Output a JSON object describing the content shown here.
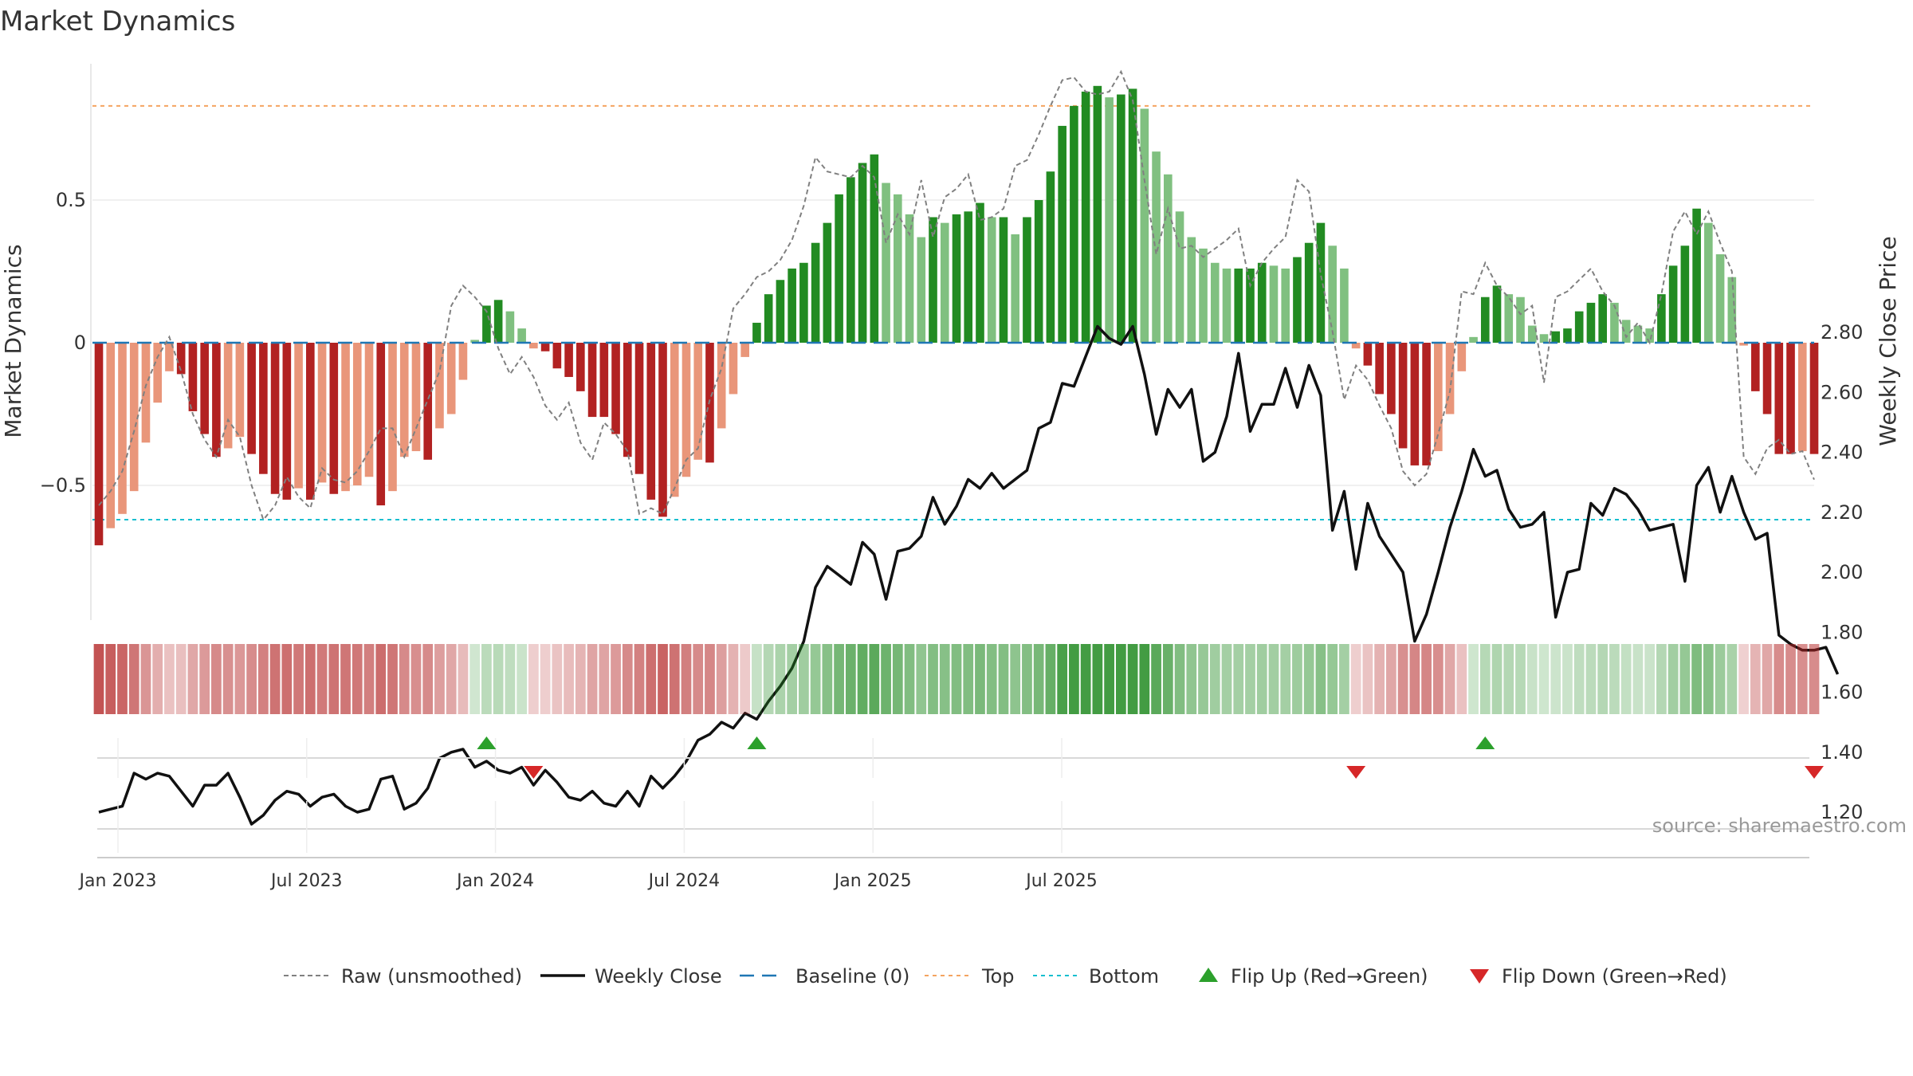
{
  "title": "Market Dynamics",
  "source": "source: sharemaestro.com",
  "colors": {
    "green_strong": "#228b22",
    "green_light": "#80c080",
    "red_strong": "#b22222",
    "red_light": "#e9967a",
    "close_line": "#111111",
    "raw_line": "#808080",
    "baseline": "#1f77b4",
    "top": "#f4a460",
    "bottom": "#17becf",
    "flip_up": "#2ca02c",
    "flip_down": "#d62728"
  },
  "chart_data": {
    "type": "bar",
    "title": "Market Dynamics",
    "x_type": "weekly",
    "x_ticks": [
      "Jan 2023",
      "Jul 2023",
      "Jan 2024",
      "Jul 2024",
      "Jan 2025",
      "Jul 2025"
    ],
    "left_axis": {
      "label": "Market Dynamics",
      "ticks": [
        "0.5",
        "0",
        "−0.5"
      ],
      "tick_values": [
        0.5,
        0,
        -0.5
      ],
      "range": [
        -0.97,
        0.97
      ]
    },
    "right_axis": {
      "label": "Weekly Close Price",
      "ticks": [
        "1.20",
        "1.40",
        "1.60",
        "1.80",
        "2.00",
        "2.20",
        "2.40",
        "2.60",
        "2.80"
      ],
      "range": [
        1.0,
        2.86
      ]
    },
    "lines": {
      "top": 0.83,
      "bottom": -0.62,
      "baseline": 0
    },
    "dynamics": [
      -0.71,
      -0.65,
      -0.6,
      -0.52,
      -0.35,
      -0.21,
      -0.1,
      -0.11,
      -0.24,
      -0.32,
      -0.4,
      -0.37,
      -0.33,
      -0.39,
      -0.46,
      -0.53,
      -0.55,
      -0.51,
      -0.55,
      -0.49,
      -0.53,
      -0.52,
      -0.5,
      -0.47,
      -0.57,
      -0.52,
      -0.4,
      -0.38,
      -0.41,
      -0.3,
      -0.25,
      -0.13,
      0.01,
      0.13,
      0.15,
      0.11,
      0.05,
      -0.02,
      -0.03,
      -0.09,
      -0.12,
      -0.17,
      -0.26,
      -0.26,
      -0.32,
      -0.4,
      -0.46,
      -0.55,
      -0.61,
      -0.54,
      -0.47,
      -0.41,
      -0.42,
      -0.3,
      -0.18,
      -0.05,
      0.07,
      0.17,
      0.22,
      0.26,
      0.28,
      0.35,
      0.42,
      0.52,
      0.58,
      0.63,
      0.66,
      0.56,
      0.52,
      0.45,
      0.37,
      0.44,
      0.42,
      0.45,
      0.46,
      0.49,
      0.44,
      0.44,
      0.38,
      0.44,
      0.5,
      0.6,
      0.76,
      0.83,
      0.88,
      0.9,
      0.86,
      0.87,
      0.89,
      0.82,
      0.67,
      0.59,
      0.46,
      0.37,
      0.33,
      0.28,
      0.26,
      0.26,
      0.26,
      0.28,
      0.27,
      0.26,
      0.3,
      0.35,
      0.42,
      0.34,
      0.26,
      -0.02,
      -0.08,
      -0.18,
      -0.25,
      -0.37,
      -0.43,
      -0.43,
      -0.38,
      -0.25,
      -0.1,
      0.02,
      0.16,
      0.2,
      0.17,
      0.16,
      0.06,
      0.03,
      0.04,
      0.05,
      0.11,
      0.14,
      0.17,
      0.14,
      0.08,
      0.06,
      0.05,
      0.17,
      0.27,
      0.34,
      0.47,
      0.42,
      0.31,
      0.23,
      -0.01,
      -0.17,
      -0.25,
      -0.39,
      -0.39,
      -0.38,
      -0.39
    ],
    "close": [
      1.2,
      1.21,
      1.22,
      1.33,
      1.31,
      1.33,
      1.32,
      1.27,
      1.22,
      1.29,
      1.29,
      1.33,
      1.25,
      1.16,
      1.19,
      1.24,
      1.27,
      1.26,
      1.22,
      1.25,
      1.26,
      1.22,
      1.2,
      1.21,
      1.31,
      1.32,
      1.21,
      1.23,
      1.28,
      1.38,
      1.4,
      1.41,
      1.35,
      1.37,
      1.34,
      1.33,
      1.35,
      1.29,
      1.34,
      1.3,
      1.25,
      1.24,
      1.27,
      1.23,
      1.22,
      1.27,
      1.22,
      1.32,
      1.28,
      1.32,
      1.37,
      1.44,
      1.46,
      1.5,
      1.48,
      1.53,
      1.51,
      1.57,
      1.62,
      1.68,
      1.77,
      1.95,
      2.02,
      1.99,
      1.96,
      2.1,
      2.06,
      1.91,
      2.07,
      2.08,
      2.12,
      2.25,
      2.16,
      2.22,
      2.31,
      2.28,
      2.33,
      2.28,
      2.31,
      2.34,
      2.48,
      2.5,
      2.63,
      2.62,
      2.72,
      2.82,
      2.78,
      2.76,
      2.82,
      2.66,
      2.46,
      2.61,
      2.55,
      2.61,
      2.37,
      2.4,
      2.52,
      2.73,
      2.47,
      2.56,
      2.56,
      2.68,
      2.55,
      2.69,
      2.59,
      2.14,
      2.27,
      2.01,
      2.23,
      2.12,
      2.06,
      2.0,
      1.77,
      1.86,
      2.0,
      2.15,
      2.27,
      2.41,
      2.32,
      2.34,
      2.21,
      2.15,
      2.16,
      2.2,
      1.85,
      2.0,
      2.01,
      2.23,
      2.19,
      2.28,
      2.26,
      2.21,
      2.14,
      2.15,
      2.16,
      1.97,
      2.29,
      2.35,
      2.2,
      2.32,
      2.2,
      2.11,
      2.13,
      1.79,
      1.76,
      1.74,
      1.74,
      1.75,
      1.66
    ],
    "raw": [
      -0.57,
      -0.52,
      -0.45,
      -0.31,
      -0.15,
      -0.05,
      0.02,
      -0.1,
      -0.25,
      -0.34,
      -0.4,
      -0.27,
      -0.33,
      -0.5,
      -0.62,
      -0.57,
      -0.47,
      -0.54,
      -0.58,
      -0.44,
      -0.48,
      -0.49,
      -0.45,
      -0.38,
      -0.3,
      -0.3,
      -0.4,
      -0.3,
      -0.2,
      -0.1,
      0.13,
      0.2,
      0.16,
      0.11,
      -0.02,
      -0.11,
      -0.05,
      -0.12,
      -0.22,
      -0.27,
      -0.21,
      -0.35,
      -0.41,
      -0.28,
      -0.32,
      -0.38,
      -0.6,
      -0.58,
      -0.6,
      -0.51,
      -0.41,
      -0.37,
      -0.2,
      -0.09,
      0.12,
      0.17,
      0.23,
      0.25,
      0.29,
      0.36,
      0.48,
      0.65,
      0.6,
      0.59,
      0.58,
      0.62,
      0.58,
      0.35,
      0.45,
      0.38,
      0.57,
      0.37,
      0.51,
      0.54,
      0.59,
      0.43,
      0.44,
      0.47,
      0.62,
      0.64,
      0.73,
      0.83,
      0.92,
      0.93,
      0.88,
      0.87,
      0.88,
      0.95,
      0.85,
      0.57,
      0.31,
      0.47,
      0.33,
      0.34,
      0.3,
      0.33,
      0.36,
      0.4,
      0.2,
      0.28,
      0.33,
      0.37,
      0.57,
      0.53,
      0.24,
      0.04,
      -0.2,
      -0.08,
      -0.13,
      -0.22,
      -0.3,
      -0.45,
      -0.5,
      -0.46,
      -0.32,
      -0.17,
      0.18,
      0.17,
      0.28,
      0.2,
      0.16,
      0.1,
      0.13,
      -0.14,
      0.16,
      0.18,
      0.22,
      0.26,
      0.18,
      0.13,
      0.02,
      0.07,
      0.0,
      0.17,
      0.39,
      0.46,
      0.38,
      0.46,
      0.35,
      0.25,
      -0.4,
      -0.46,
      -0.37,
      -0.34,
      -0.39,
      -0.38,
      -0.48
    ],
    "flips": [
      {
        "type": "up",
        "index": 33
      },
      {
        "type": "down",
        "index": 37
      },
      {
        "type": "up",
        "index": 56
      },
      {
        "type": "down",
        "index": 107
      },
      {
        "type": "up",
        "index": 118
      },
      {
        "type": "down",
        "index": 146
      }
    ],
    "legend": [
      {
        "key": "raw",
        "label": "Raw (unsmoothed)"
      },
      {
        "key": "close",
        "label": "Weekly Close"
      },
      {
        "key": "baseline",
        "label": "Baseline (0)"
      },
      {
        "key": "top",
        "label": "Top"
      },
      {
        "key": "bottom",
        "label": "Bottom"
      },
      {
        "key": "flip_up",
        "label": "Flip Up (Red→Green)"
      },
      {
        "key": "flip_down",
        "label": "Flip Down (Green→Red)"
      }
    ]
  }
}
